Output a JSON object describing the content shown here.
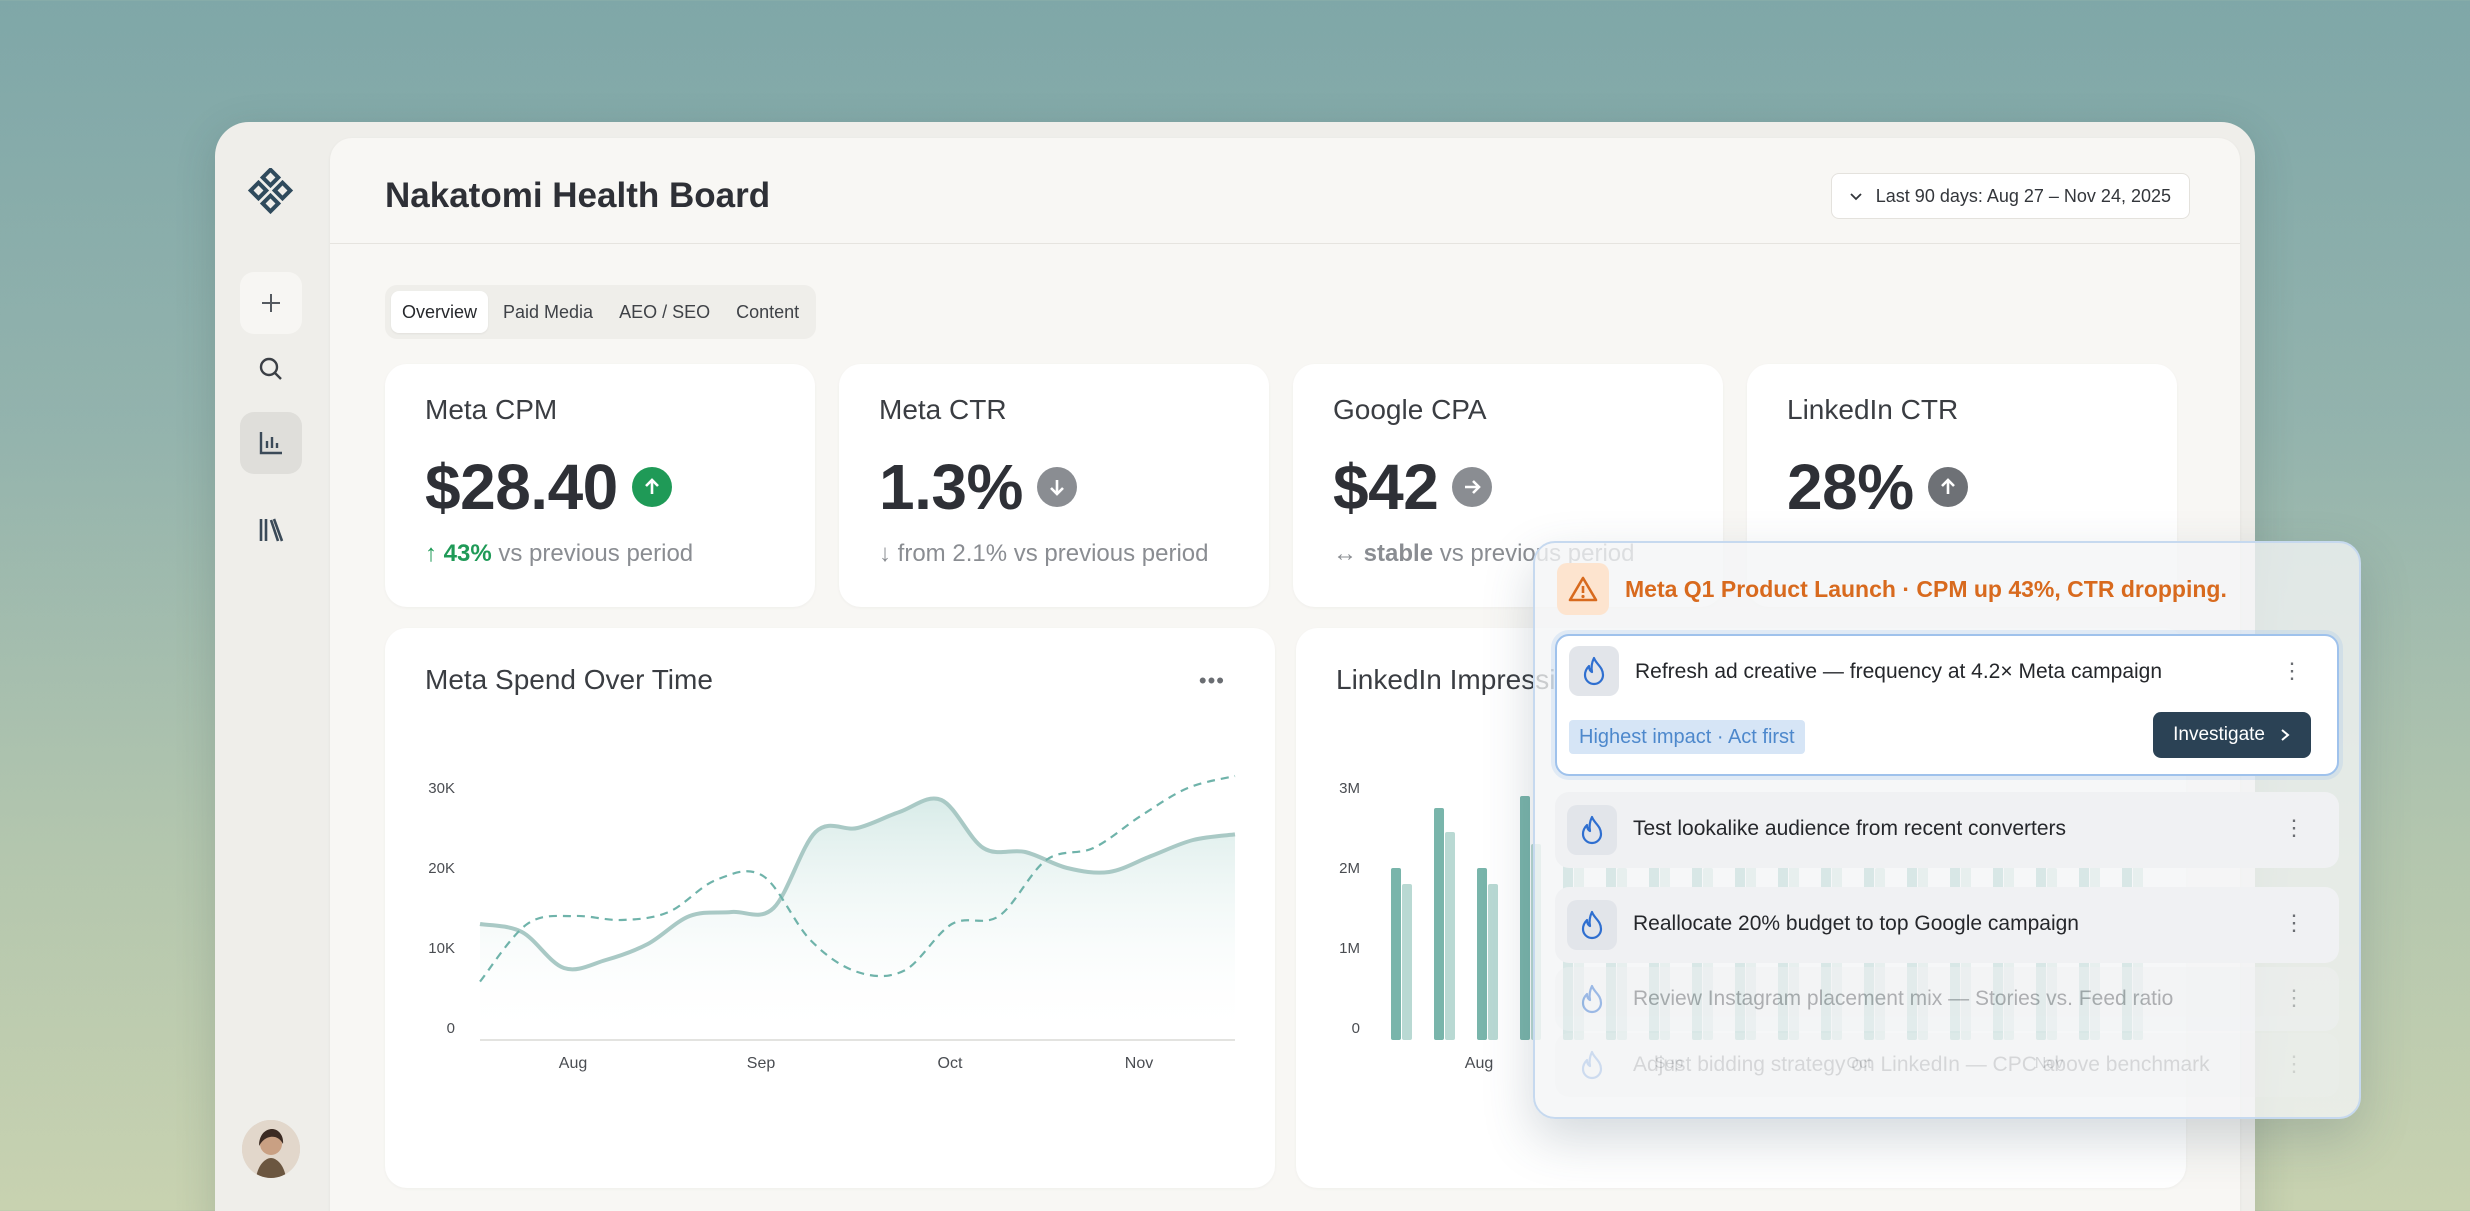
{
  "app": {
    "title": "Nakatomi Health Board",
    "date_range": "Last 90 days: Aug 27 – Nov 24, 2025"
  },
  "rail": {
    "icons": [
      "logo-icon",
      "plus-icon",
      "search-icon",
      "chart-icon",
      "library-icon"
    ]
  },
  "tabs": [
    "Overview",
    "Paid Media",
    "AEO / SEO",
    "Content"
  ],
  "kpis": [
    {
      "label": "Meta CPM",
      "value": "$28.40",
      "trend": "up",
      "trend_color": "#1f9a57",
      "sub_pre": "↑",
      "sub_strong": "43%",
      "sub_rest": "vs previous period"
    },
    {
      "label": "Meta CTR",
      "value": "1.3%",
      "trend": "down",
      "trend_color": "#8a8d92",
      "sub_pre": "↓",
      "sub_strong": "",
      "sub_rest": "from 2.1% vs previous period"
    },
    {
      "label": "Google CPA",
      "value": "$42",
      "trend": "flat",
      "trend_color": "#8a8d92",
      "sub_pre": "↔",
      "sub_strong": "stable",
      "sub_rest": "vs previous period"
    },
    {
      "label": "LinkedIn CTR",
      "value": "28%",
      "trend": "up",
      "trend_color": "#6e7176",
      "sub_pre": "",
      "sub_strong": "",
      "sub_rest": ""
    }
  ],
  "charts": {
    "meta": {
      "title": "Meta Spend Over Time"
    },
    "linkedin": {
      "title": "LinkedIn Impressions"
    }
  },
  "chart_data": [
    {
      "type": "line",
      "title": "Meta Spend Over Time",
      "x_ticks": [
        "Aug",
        "Sep",
        "Oct",
        "Nov"
      ],
      "y_ticks": [
        "0",
        "10K",
        "20K",
        "30K"
      ],
      "ylim": [
        0,
        30000
      ],
      "series": [
        {
          "style": "solid",
          "color": "#a9c9c5",
          "values": [
            13000,
            12000,
            7500,
            8500,
            10500,
            14000,
            14500,
            15000,
            24500,
            25000,
            27000,
            28500,
            22500,
            22000,
            20000,
            19500,
            21500,
            23500,
            24200
          ]
        },
        {
          "style": "area",
          "color": "#89bdb7",
          "values": [
            5800,
            13000,
            14000,
            13500,
            14500,
            18500,
            19000,
            11000,
            7000,
            7200,
            13000,
            14000,
            21000,
            22500,
            26500,
            30000,
            31500
          ]
        },
        {
          "style": "dashed",
          "color": "#6fb3aa",
          "values": [
            5800,
            13000,
            14000,
            13500,
            14500,
            18500,
            19000,
            11000,
            7000,
            7200,
            13000,
            14000,
            21000,
            22500,
            26500,
            30000,
            31500
          ]
        }
      ]
    },
    {
      "type": "bar",
      "title": "LinkedIn Impressions",
      "x_ticks": [
        "Aug",
        "Sep",
        "Oct",
        "Nov"
      ],
      "y_ticks": [
        "0",
        "1M",
        "2M",
        "3M"
      ],
      "ylim": [
        0,
        3000000
      ],
      "series": [
        {
          "name": "dark",
          "color": "#79b5ab",
          "values": [
            2000000,
            2750000,
            2000000,
            2900000,
            2500000,
            2300000,
            2600000,
            2200000,
            2400000,
            2700000,
            2500000,
            2300000,
            2600000,
            2400000,
            2500000,
            2200000,
            2300000,
            2450000
          ]
        },
        {
          "name": "light",
          "color": "#b9d9d3",
          "values": [
            1800000,
            2450000,
            1800000,
            2300000,
            2100000,
            2000000,
            2200000,
            2000000,
            2100000,
            2300000,
            2100000,
            2000000,
            2200000,
            2100000,
            2200000,
            2000000,
            2050000,
            2150000
          ]
        }
      ]
    }
  ],
  "alert": {
    "title": "Meta Q1 Product Launch · CPM up 43%, CTR dropping.",
    "items": [
      {
        "text": "Refresh ad creative — frequency at 4.2× Meta campaign",
        "tag": "Highest impact · Act first",
        "action": "Investigate"
      },
      {
        "text": "Test lookalike audience from recent converters"
      },
      {
        "text": "Reallocate 20% budget to top Google campaign"
      },
      {
        "text": "Review Instagram placement mix — Stories vs. Feed ratio"
      },
      {
        "text": "Adjust bidding strategy on LinkedIn — CPC above benchmark"
      }
    ]
  }
}
